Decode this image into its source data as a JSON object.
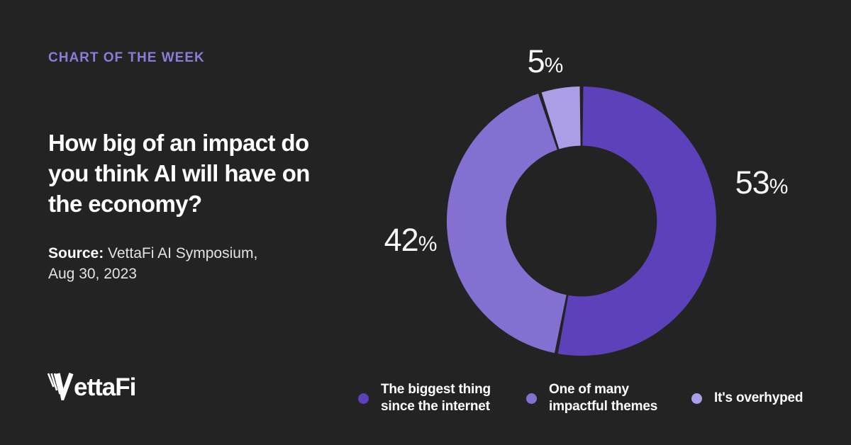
{
  "page": {
    "background_color": "#232323",
    "text_color": "#ffffff"
  },
  "eyebrow": {
    "label": "CHART OF THE WEEK",
    "color": "#8f7ad8"
  },
  "heading": "How big of an impact do\nyou think AI will have on\nthe economy?",
  "source": {
    "label": "Source:",
    "text": " VettaFi AI Symposium,\nAug 30, 2023"
  },
  "logo": {
    "name": "VettaFi",
    "wordmark_rest": "ettaFi"
  },
  "chart_data": {
    "type": "pie",
    "subtype": "donut",
    "title": "How big of an impact do you think AI will have on the economy?",
    "categories": [
      "The biggest thing since the internet",
      "One of many impactful themes",
      "It's overhyped"
    ],
    "values": [
      53,
      42,
      5
    ],
    "unit": "%",
    "colors": [
      "#5c41ba",
      "#8470d0",
      "#ab9ee6"
    ],
    "start_angle_deg": 0,
    "direction": "clockwise",
    "donut_hole_ratio": 0.78,
    "gap_degrees": 1.5,
    "grid": false,
    "legend_position": "bottom",
    "labels": [
      {
        "value": "53",
        "suffix": "%"
      },
      {
        "value": "42",
        "suffix": "%"
      },
      {
        "value": "5",
        "suffix": "%"
      }
    ],
    "legend": [
      {
        "label": "The biggest thing\nsince the internet",
        "color": "#5c41ba"
      },
      {
        "label": "One of many\nimpactful themes",
        "color": "#8470d0"
      },
      {
        "label": "It's overhyped",
        "color": "#ab9ee6"
      }
    ]
  }
}
